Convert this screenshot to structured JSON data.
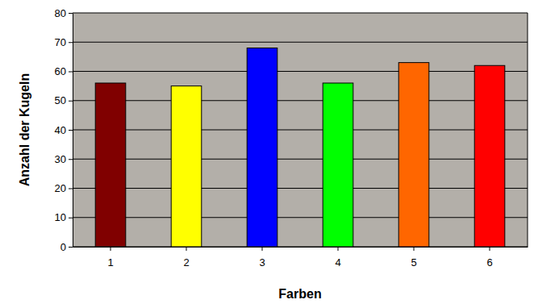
{
  "chart_data": {
    "type": "bar",
    "x_label": "Farben",
    "y_label": "Anzahl der Kugeln",
    "categories": [
      "1",
      "2",
      "3",
      "4",
      "5",
      "6"
    ],
    "values": [
      56,
      55,
      68,
      56,
      63,
      62
    ],
    "colors": [
      "#800000",
      "#ffff00",
      "#0000ff",
      "#00ff00",
      "#ff6600",
      "#ff0000"
    ],
    "ylim": [
      0,
      80
    ],
    "yticks": [
      0,
      10,
      20,
      30,
      40,
      50,
      60,
      70,
      80
    ],
    "grid": true
  }
}
